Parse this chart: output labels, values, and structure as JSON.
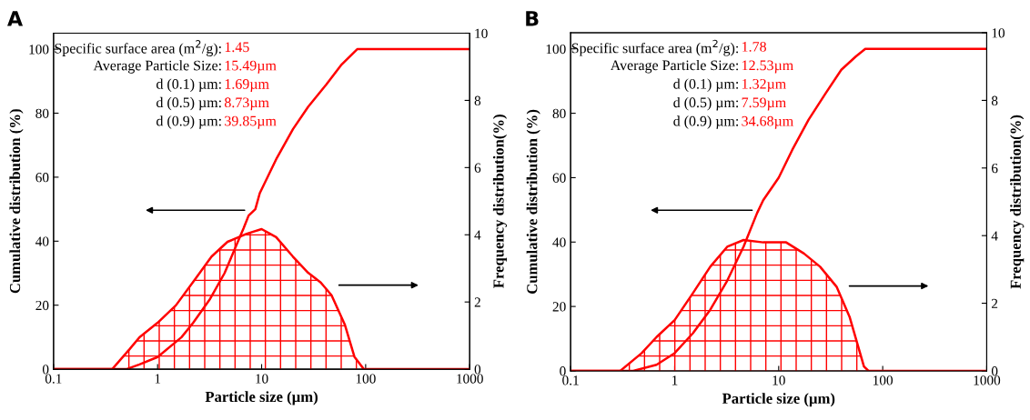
{
  "chart_data": [
    {
      "type": "line",
      "title": "A",
      "xlabel": "Particle size (µm)",
      "ylabel": "Cumulative distribution (%)",
      "y2label": "Frequency distribution(%)",
      "log": "x",
      "xlim": [
        0.1,
        1000
      ],
      "xticks": [
        0.1,
        1,
        10,
        100,
        1000
      ],
      "ylim": [
        0,
        105
      ],
      "yticks": [
        0,
        20,
        40,
        60,
        80,
        100
      ],
      "y2lim": [
        0,
        10
      ],
      "y2ticks": [
        0,
        2,
        4,
        6,
        8,
        10
      ],
      "grid": false,
      "annotations": [
        "Specific surface area (m$^{2}$/g):",
        "1.45",
        "Average Particle Size:",
        "15.49µm",
        "d (0.1) µm:",
        "1.69µm",
        "d (0.5) µm:",
        "8.73µm",
        "d (0.9) µm:",
        "39.85µm"
      ],
      "series": [
        {
          "color": "#ff0000",
          "x": [
            0.1,
            0.5,
            0.67,
            1,
            1.7,
            2.2,
            3.2,
            4.4,
            6.7,
            7.5,
            8.7,
            9.6,
            14,
            20,
            28,
            42,
            58,
            83,
            1000
          ],
          "values": [
            0,
            0,
            1.5,
            3.8,
            10,
            14.5,
            22,
            30,
            44,
            48,
            50,
            55,
            66,
            75,
            82,
            89,
            95,
            100,
            100
          ]
        },
        {
          "type": "area",
          "axis": "y2",
          "color": "#ff0000",
          "x": [
            0.1,
            0.366,
            0.54,
            0.67,
            1,
            1.5,
            2.3,
            3.3,
            4.7,
            7.2,
            10,
            13.8,
            20,
            28,
            37,
            47,
            63,
            78,
            96,
            1000
          ],
          "values": [
            0,
            0,
            0.6,
            0.95,
            1.38,
            1.9,
            2.68,
            3.35,
            3.79,
            4.03,
            4.17,
            3.93,
            3.35,
            2.87,
            2.58,
            2.2,
            1.33,
            0.37,
            0,
            0
          ]
        }
      ]
    },
    {
      "type": "line",
      "title": "B",
      "xlabel": "Particle size (µm)",
      "ylabel": "Cumulative distribution (%)",
      "y2label": "Frequency distribution(%)",
      "log": "x",
      "xlim": [
        0.1,
        1000
      ],
      "xticks": [
        0.1,
        1,
        10,
        100,
        1000
      ],
      "ylim": [
        0,
        105
      ],
      "yticks": [
        0,
        20,
        40,
        60,
        80,
        100
      ],
      "y2lim": [
        0,
        10
      ],
      "y2ticks": [
        0,
        2,
        4,
        6,
        8,
        10
      ],
      "grid": false,
      "annotations": [
        "Specific surface area (m$^{2}$/g):",
        "1.78",
        "Average Particle Size:",
        "12.53µm",
        "d (0.1) µm:",
        "1.32µm",
        "d (0.5) µm:",
        "7.59µm",
        "d (0.9) µm:",
        "34.68µm"
      ],
      "series": [
        {
          "color": "#ff0000",
          "x": [
            0.1,
            0.4,
            0.67,
            1,
            1.5,
            2.2,
            3.2,
            4.6,
            6.2,
            7.1,
            10,
            13.5,
            19.4,
            28,
            40,
            55,
            68,
            1000
          ],
          "values": [
            0,
            0,
            1.9,
            5.5,
            11.7,
            19,
            28,
            38.6,
            49,
            53,
            60,
            68.6,
            78,
            86,
            93.5,
            97.6,
            100,
            100
          ]
        },
        {
          "type": "area",
          "axis": "y2",
          "color": "#ff0000",
          "x": [
            0.1,
            0.3,
            0.48,
            0.67,
            1,
            1.5,
            2.2,
            3.2,
            4.6,
            7.1,
            11.8,
            17.5,
            25,
            36,
            48,
            66,
            73,
            1000
          ],
          "values": [
            0,
            0,
            0.52,
            1.0,
            1.5,
            2.3,
            3.08,
            3.67,
            3.87,
            3.8,
            3.8,
            3.47,
            3.08,
            2.49,
            1.6,
            0.13,
            0,
            0
          ]
        }
      ]
    }
  ]
}
